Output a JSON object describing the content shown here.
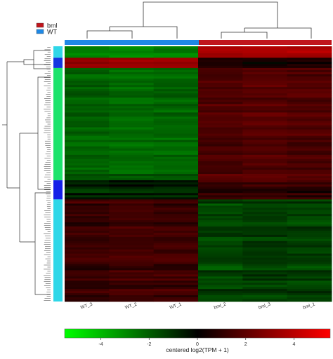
{
  "chart_data": {
    "type": "heatmap",
    "legend": [
      {
        "label": "bml",
        "color": "#c0151c"
      },
      {
        "label": "WT",
        "color": "#1e88e5"
      }
    ],
    "columns": [
      "WT_3",
      "WT_2",
      "WT_1",
      "bml_2",
      "bml_3",
      "bml_1"
    ],
    "column_groups": [
      "WT",
      "WT",
      "WT",
      "bml",
      "bml",
      "bml"
    ],
    "row_clusters": [
      {
        "id": "c1",
        "color": "#2fd7e8",
        "fraction": 0.045
      },
      {
        "id": "c2",
        "color": "#1536e0",
        "fraction": 0.04
      },
      {
        "id": "c3",
        "color": "#1ce36b",
        "fraction": 0.44
      },
      {
        "id": "c4",
        "color": "#1520e8",
        "fraction": 0.075
      },
      {
        "id": "c5",
        "color": "#2fd7e8",
        "fraction": 0.4
      }
    ],
    "block_values": [
      [
        -2.4,
        -2.6,
        -2.3,
        3.4,
        3.6,
        3.5
      ],
      [
        3.0,
        3.2,
        3.1,
        0.6,
        0.4,
        0.5
      ],
      [
        -1.6,
        -1.8,
        -1.7,
        1.4,
        1.6,
        1.5
      ],
      [
        -0.6,
        -0.4,
        -0.5,
        0.8,
        0.9,
        0.7
      ],
      [
        0.9,
        1.1,
        1.0,
        -1.2,
        -1.0,
        -1.1
      ]
    ],
    "colorbar": {
      "ticks": [
        -4,
        -2,
        0,
        2,
        4
      ],
      "tick_labels": [
        "-4",
        "-2",
        "0",
        "2",
        "4"
      ],
      "range": [
        -5.5,
        5.5
      ],
      "colors": [
        "#00ff00",
        "#000000",
        "#ff0000"
      ],
      "label": "centered log2(TPM + 1)"
    }
  }
}
